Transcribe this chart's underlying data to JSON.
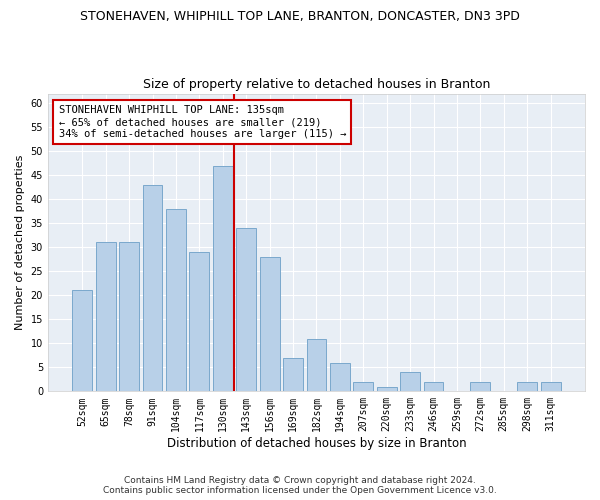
{
  "title1": "STONEHAVEN, WHIPHILL TOP LANE, BRANTON, DONCASTER, DN3 3PD",
  "title2": "Size of property relative to detached houses in Branton",
  "xlabel": "Distribution of detached houses by size in Branton",
  "ylabel": "Number of detached properties",
  "categories": [
    "52sqm",
    "65sqm",
    "78sqm",
    "91sqm",
    "104sqm",
    "117sqm",
    "130sqm",
    "143sqm",
    "156sqm",
    "169sqm",
    "182sqm",
    "194sqm",
    "207sqm",
    "220sqm",
    "233sqm",
    "246sqm",
    "259sqm",
    "272sqm",
    "285sqm",
    "298sqm",
    "311sqm"
  ],
  "values": [
    21,
    31,
    31,
    43,
    38,
    29,
    47,
    34,
    28,
    7,
    11,
    6,
    2,
    1,
    4,
    2,
    0,
    2,
    0,
    2,
    2
  ],
  "bar_color": "#b8d0e8",
  "bar_edge_color": "#7aa8cc",
  "bar_width": 0.85,
  "vline_color": "#cc0000",
  "annotation_text": "STONEHAVEN WHIPHILL TOP LANE: 135sqm\n← 65% of detached houses are smaller (219)\n34% of semi-detached houses are larger (115) →",
  "annotation_box_color": "#ffffff",
  "annotation_box_edge": "#cc0000",
  "ylim": [
    0,
    62
  ],
  "yticks": [
    0,
    5,
    10,
    15,
    20,
    25,
    30,
    35,
    40,
    45,
    50,
    55,
    60
  ],
  "footer1": "Contains HM Land Registry data © Crown copyright and database right 2024.",
  "footer2": "Contains public sector information licensed under the Open Government Licence v3.0.",
  "bg_color": "#e8eef5",
  "grid_color": "#ffffff",
  "fig_bg_color": "#ffffff",
  "title1_fontsize": 9,
  "title2_fontsize": 9,
  "xlabel_fontsize": 8.5,
  "ylabel_fontsize": 8,
  "tick_fontsize": 7,
  "annotation_fontsize": 7.5,
  "footer_fontsize": 6.5,
  "vline_x_index": 6.5
}
